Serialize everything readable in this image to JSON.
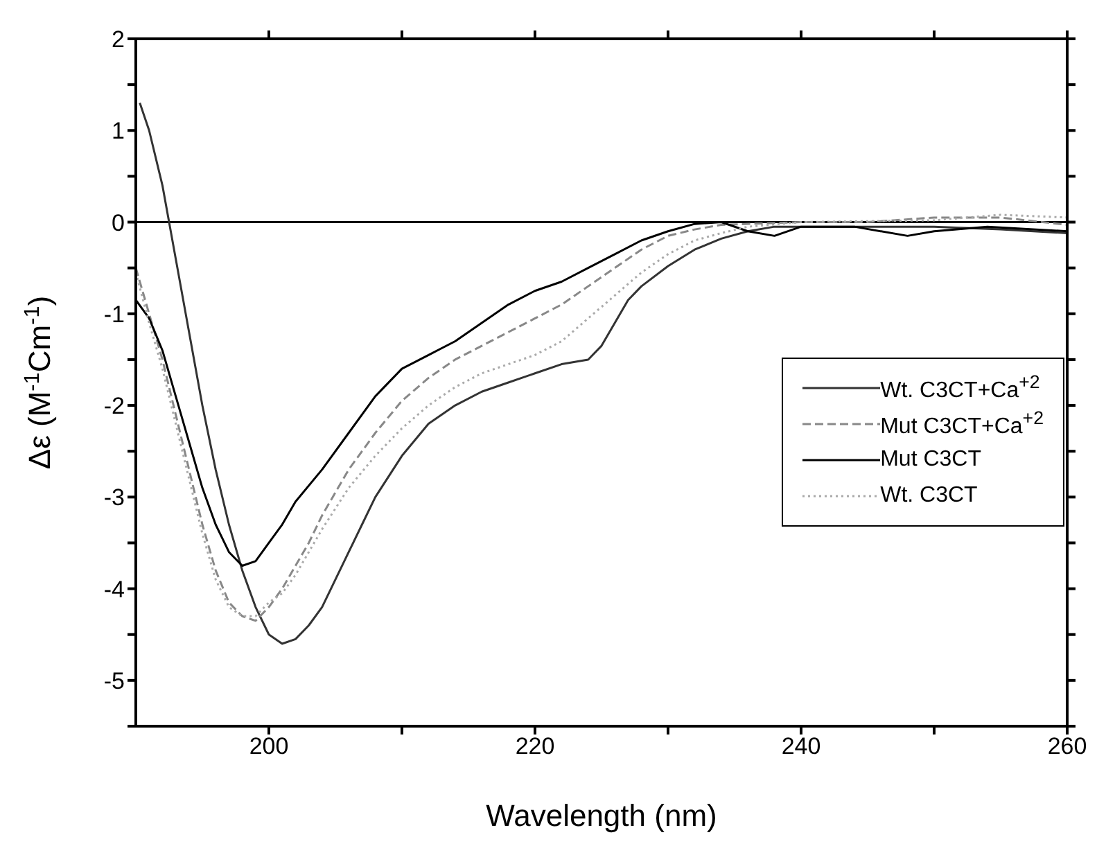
{
  "chart_data": {
    "type": "line",
    "xlabel": "Wavelength (nm)",
    "ylabel": "Δε (M$^{-1}$Cm$^{-1}$)",
    "xlim": [
      190,
      260
    ],
    "xticks": [
      200,
      {
        "value": 210,
        "label": null
      },
      220,
      {
        "value": 230,
        "label": null
      },
      240,
      {
        "value": 250,
        "label": null
      },
      260
    ],
    "ylim": [
      -5.5,
      2
    ],
    "yticks": [
      {
        "value": -5.5,
        "label": null
      },
      -5,
      {
        "value": -4.5,
        "label": null
      },
      -4,
      {
        "value": -3.5,
        "label": null
      },
      -3,
      {
        "value": -2.5,
        "label": null
      },
      -2,
      {
        "value": -1.5,
        "label": null
      },
      -1,
      {
        "value": -0.5,
        "label": null
      },
      0,
      {
        "value": 0.5,
        "label": null
      },
      1,
      {
        "value": 1.5,
        "label": null
      },
      2
    ],
    "legend": "right",
    "marker": "none",
    "ref_lines": [
      {
        "axis": "y",
        "value": 0,
        "color": "#000000",
        "line_style": "solid"
      }
    ],
    "series": [
      {
        "name": "Wt. C3CT+Ca$^{+2}$",
        "color": "#333333",
        "line_style": "solid",
        "x": [
          190.3,
          191,
          192,
          192.5,
          193,
          194,
          195,
          196,
          197,
          198,
          199,
          200,
          201,
          202,
          203,
          204,
          205,
          206,
          207,
          208,
          210,
          212,
          214,
          216,
          218,
          220,
          222,
          224,
          225,
          226,
          227,
          228,
          230,
          232,
          234,
          236,
          238,
          240,
          245,
          250,
          255,
          260
        ],
        "values": [
          1.3,
          1.0,
          0.4,
          0,
          -0.4,
          -1.2,
          -2.0,
          -2.7,
          -3.3,
          -3.8,
          -4.2,
          -4.5,
          -4.6,
          -4.55,
          -4.4,
          -4.2,
          -3.9,
          -3.6,
          -3.3,
          -3.0,
          -2.55,
          -2.2,
          -2.0,
          -1.85,
          -1.75,
          -1.65,
          -1.55,
          -1.5,
          -1.35,
          -1.1,
          -0.85,
          -0.7,
          -0.48,
          -0.3,
          -0.18,
          -0.1,
          -0.05,
          -0.05,
          -0.05,
          -0.05,
          -0.08,
          -0.12
        ]
      },
      {
        "name": "Mut C3CT+Ca$^{+2}$",
        "color": "#888888",
        "line_style": "dashed",
        "x": [
          190,
          191,
          192,
          193,
          194,
          195,
          196,
          197,
          198,
          199,
          200,
          201,
          202,
          203,
          204,
          206,
          208,
          210,
          212,
          214,
          216,
          218,
          220,
          222,
          224,
          226,
          228,
          230,
          232,
          234,
          240,
          245,
          250,
          255,
          260
        ],
        "values": [
          -0.5,
          -1.0,
          -1.5,
          -2.1,
          -2.7,
          -3.3,
          -3.8,
          -4.15,
          -4.3,
          -4.35,
          -4.2,
          -4.0,
          -3.75,
          -3.5,
          -3.2,
          -2.7,
          -2.3,
          -1.95,
          -1.7,
          -1.5,
          -1.35,
          -1.2,
          -1.05,
          -0.9,
          -0.7,
          -0.5,
          -0.3,
          -0.15,
          -0.08,
          -0.03,
          0,
          0,
          0.05,
          0.05,
          -0.03
        ]
      },
      {
        "name": "Mut C3CT",
        "color": "#000000",
        "line_style": "solid",
        "x": [
          190,
          191,
          192,
          193,
          194,
          195,
          196,
          197,
          198,
          199,
          200,
          201,
          202,
          204,
          206,
          208,
          210,
          212,
          214,
          216,
          218,
          220,
          222,
          224,
          226,
          228,
          230,
          232,
          234,
          236,
          238,
          240,
          244,
          248,
          250,
          254,
          260
        ],
        "values": [
          -0.85,
          -1.05,
          -1.4,
          -1.9,
          -2.4,
          -2.9,
          -3.3,
          -3.6,
          -3.75,
          -3.7,
          -3.5,
          -3.3,
          -3.05,
          -2.7,
          -2.3,
          -1.9,
          -1.6,
          -1.45,
          -1.3,
          -1.1,
          -0.9,
          -0.75,
          -0.65,
          -0.5,
          -0.35,
          -0.2,
          -0.1,
          -0.02,
          0,
          -0.1,
          -0.15,
          -0.05,
          -0.05,
          -0.15,
          -0.1,
          -0.05,
          -0.1
        ]
      },
      {
        "name": "Wt. C3CT",
        "color": "#aaaaaa",
        "line_style": "dotted",
        "x": [
          190,
          191,
          192,
          193,
          194,
          195,
          196,
          197,
          198,
          199,
          200,
          201,
          202,
          203,
          204,
          206,
          208,
          210,
          212,
          214,
          216,
          218,
          220,
          222,
          224,
          226,
          228,
          230,
          232,
          234,
          236,
          240,
          250,
          255,
          260
        ],
        "values": [
          -0.55,
          -1.1,
          -1.6,
          -2.2,
          -2.8,
          -3.4,
          -3.9,
          -4.2,
          -4.3,
          -4.3,
          -4.15,
          -4.05,
          -3.85,
          -3.6,
          -3.35,
          -2.9,
          -2.55,
          -2.25,
          -2.0,
          -1.8,
          -1.65,
          -1.55,
          -1.45,
          -1.3,
          -1.05,
          -0.8,
          -0.55,
          -0.35,
          -0.2,
          -0.12,
          -0.05,
          0,
          0.02,
          0.08,
          0.05
        ]
      }
    ]
  }
}
